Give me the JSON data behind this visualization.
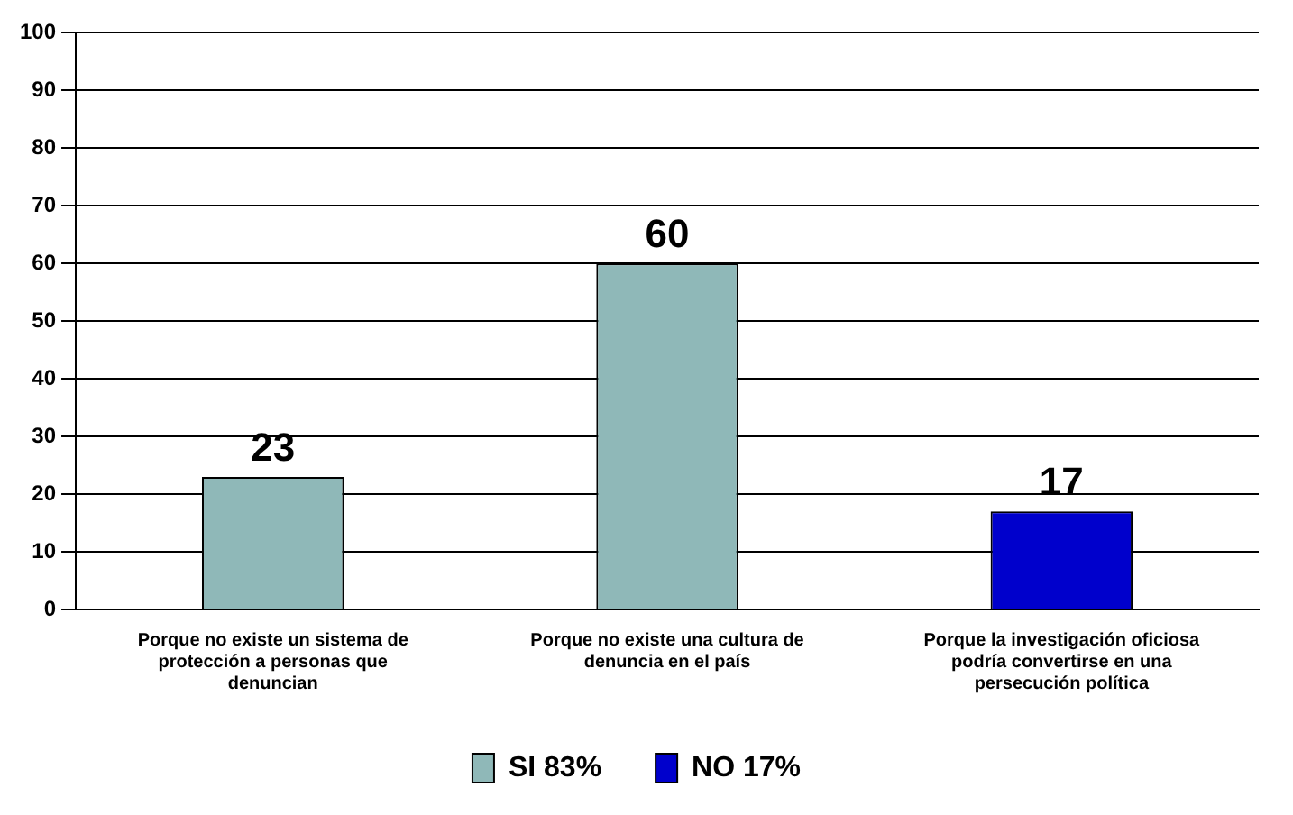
{
  "chart_data": {
    "type": "bar",
    "categories": [
      "Porque no existe un sistema de protección a personas que denuncian",
      "Porque no existe una cultura de denuncia en el país",
      "Porque la investigación oficiosa podría convertirse en una persecución política"
    ],
    "series": [
      {
        "name": "SI 83%",
        "color": "#8fb8b8",
        "values": [
          23,
          60,
          null
        ]
      },
      {
        "name": "NO 17%",
        "color": "#0000cc",
        "values": [
          null,
          null,
          17
        ]
      }
    ],
    "ylim": [
      0,
      100
    ],
    "yticks": [
      0,
      10,
      20,
      30,
      40,
      50,
      60,
      70,
      80,
      90,
      100
    ],
    "grid": "y",
    "legend": "bottom",
    "data_labels": true
  }
}
